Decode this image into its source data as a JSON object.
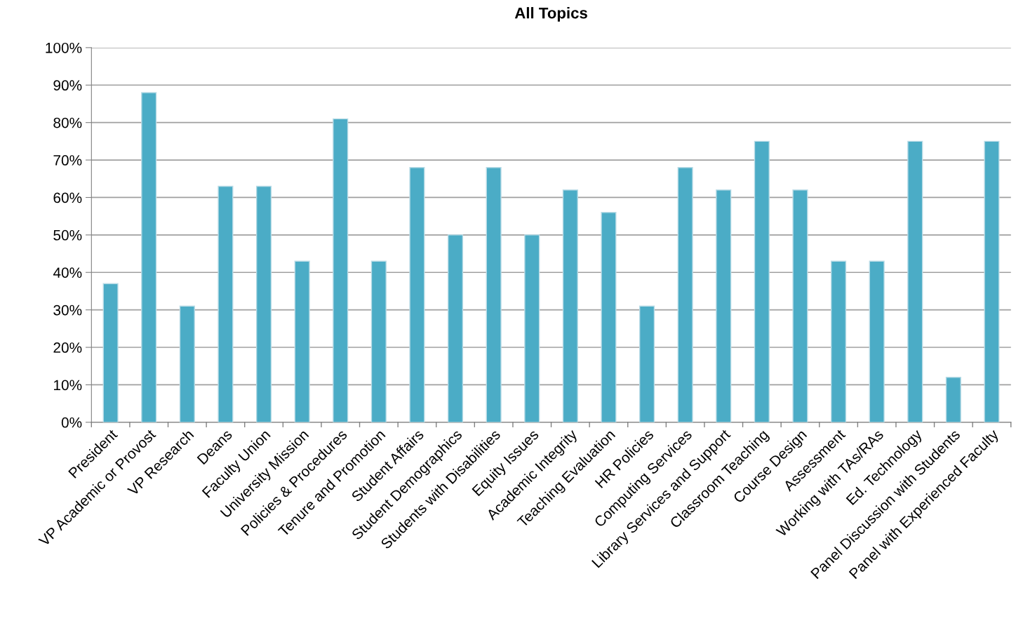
{
  "chart_data": {
    "type": "bar",
    "title": "All Topics",
    "categories": [
      "President",
      "VP Academic or Provost",
      "VP Research",
      "Deans",
      "Faculty Union",
      "University Mission",
      "Policies & Procedures",
      "Tenure and Promotion",
      "Student Affairs",
      "Student Demographics",
      "Students with Disabilities",
      "Equity Issues",
      "Academic Integrity",
      "Teaching Evaluation",
      "HR Policies",
      "Computing Services",
      "Library Services and Support",
      "Classroom Teaching",
      "Course Design",
      "Assessment",
      "Working with TAs/RAs",
      "Ed. Technology",
      "Panel Discussion with Students",
      "Panel with Experienced Faculty"
    ],
    "values": [
      37,
      88,
      31,
      63,
      63,
      43,
      81,
      43,
      68,
      50,
      68,
      50,
      62,
      56,
      31,
      68,
      62,
      75,
      62,
      43,
      43,
      75,
      12,
      75
    ],
    "color": "#4bacc6",
    "ylim": [
      0,
      100
    ],
    "yticks": [
      {
        "value": 0,
        "label": "0%"
      },
      {
        "value": 10,
        "label": "10%"
      },
      {
        "value": 20,
        "label": "20%"
      },
      {
        "value": 30,
        "label": "30%"
      },
      {
        "value": 40,
        "label": "40%"
      },
      {
        "value": 50,
        "label": "50%"
      },
      {
        "value": 60,
        "label": "60%"
      },
      {
        "value": 70,
        "label": "70%"
      },
      {
        "value": 80,
        "label": "80%"
      },
      {
        "value": 90,
        "label": "90%"
      },
      {
        "value": 100,
        "label": "100%"
      }
    ],
    "grid": "y"
  }
}
